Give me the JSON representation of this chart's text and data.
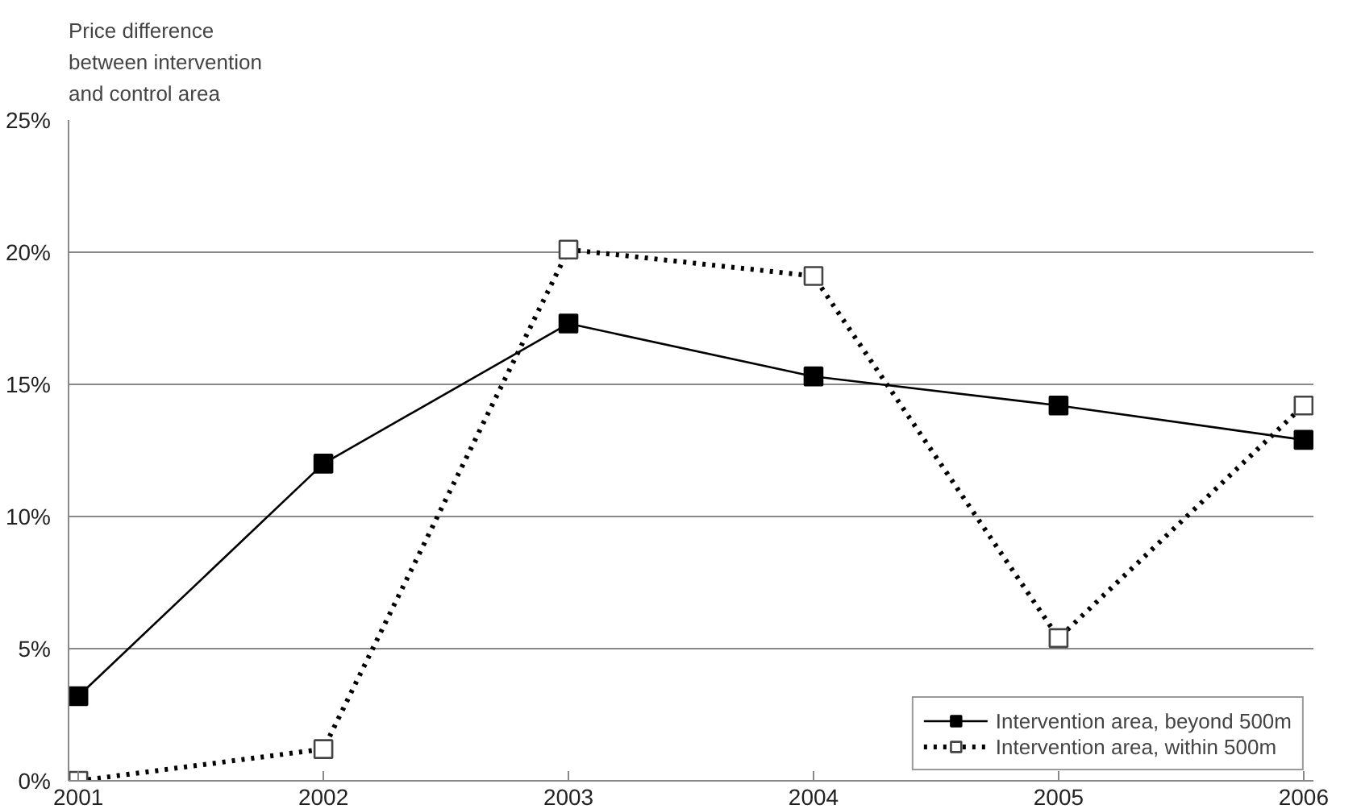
{
  "chart_data": {
    "type": "line",
    "ylabel": "Price difference\nbetween intervention\nand control area",
    "categories": [
      "2001",
      "2002",
      "2003",
      "2004",
      "2005",
      "2006"
    ],
    "series": [
      {
        "name": "Intervention area, beyond 500m",
        "color": "#000000",
        "line_style": "solid",
        "values": [
          3.2,
          12.0,
          17.3,
          15.3,
          14.2,
          12.9
        ]
      },
      {
        "name": "Intervention area, within 500m",
        "color": "#000000",
        "line_style": "dotted",
        "values": [
          0.0,
          1.2,
          20.1,
          19.1,
          5.4,
          14.2
        ]
      }
    ],
    "ylim": [
      0,
      25
    ],
    "yticks": [
      {
        "value": 0,
        "label": "0%"
      },
      {
        "value": 5,
        "label": "5%"
      },
      {
        "value": 10,
        "label": "10%"
      },
      {
        "value": 15,
        "label": "15%"
      },
      {
        "value": 20,
        "label": "20%"
      },
      {
        "value": 25,
        "label": "25%"
      }
    ],
    "grid": "y",
    "legend": "bottom right",
    "marker": "square"
  }
}
